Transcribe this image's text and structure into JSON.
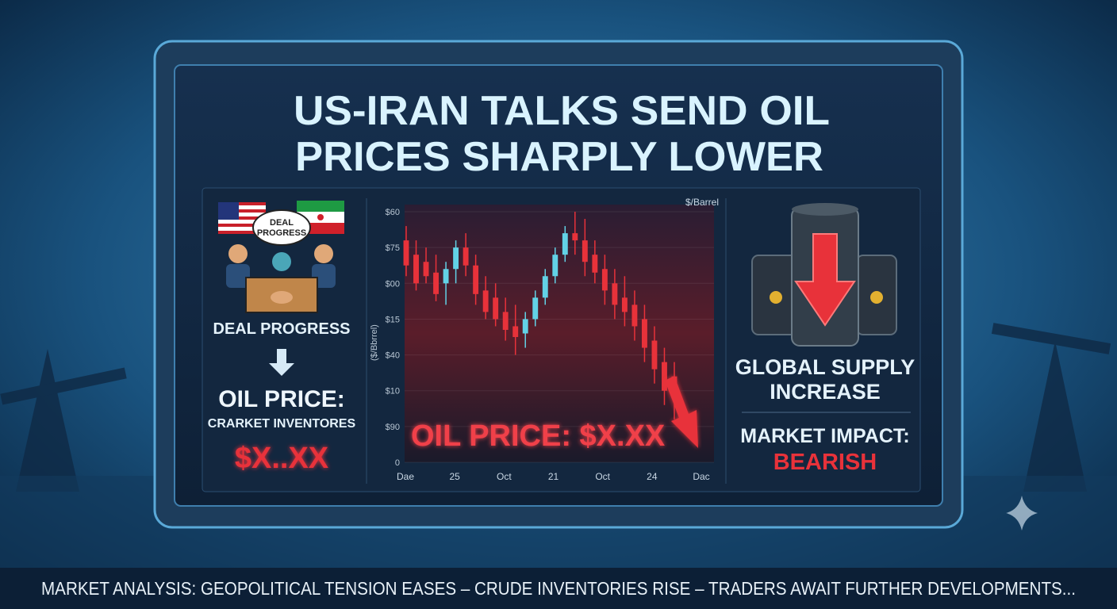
{
  "headline": {
    "line1": "US-IRAN TALKS SEND OIL",
    "line2": "PRICES SHARPLY LOWER"
  },
  "left_panel": {
    "speech_bubble": [
      "DEAL",
      "PROGRESS"
    ],
    "caption": "DEAL PROGRESS",
    "price_title": "OIL PRICE:",
    "price_subtitle": "CRARKET INVENTORES",
    "price_value": "$X..XX"
  },
  "chart_data": {
    "type": "candlestick",
    "unit_label": "$/Barrel",
    "y_label": "($/Bbrrel)",
    "overlay_label": "OIL PRICE: $X.XX",
    "x_tick_labels": [
      "Dae",
      "25",
      "Oct",
      "21",
      "Oct",
      "24",
      "Dac"
    ],
    "ylim": [
      0,
      72
    ],
    "yticks": [
      {
        "value": 70,
        "label": "$60"
      },
      {
        "value": 60,
        "label": "$75"
      },
      {
        "value": 50,
        "label": "$00"
      },
      {
        "value": 40,
        "label": "$15"
      },
      {
        "value": 30,
        "label": "$40"
      },
      {
        "value": 20,
        "label": "$10"
      },
      {
        "value": 10,
        "label": "$90"
      },
      0
    ],
    "up_color": "#62d2e6",
    "down_color": "#e8323a",
    "open": [
      62,
      58,
      56,
      53,
      50,
      54,
      60,
      55,
      48,
      46,
      42,
      38,
      36,
      40,
      46,
      52,
      58,
      64,
      62,
      58,
      54,
      50,
      46,
      44,
      40,
      34,
      28,
      24
    ],
    "high": [
      66,
      62,
      60,
      58,
      56,
      62,
      64,
      58,
      52,
      50,
      46,
      44,
      42,
      48,
      54,
      60,
      66,
      70,
      68,
      62,
      58,
      54,
      52,
      48,
      44,
      38,
      32,
      28
    ],
    "low": [
      52,
      48,
      50,
      45,
      44,
      50,
      52,
      44,
      40,
      38,
      34,
      30,
      32,
      38,
      44,
      50,
      56,
      58,
      52,
      50,
      44,
      40,
      38,
      34,
      28,
      22,
      16,
      12
    ],
    "close": [
      55,
      50,
      52,
      47,
      54,
      60,
      55,
      47,
      42,
      40,
      37,
      35,
      40,
      46,
      52,
      58,
      64,
      62,
      56,
      53,
      48,
      44,
      42,
      38,
      32,
      26,
      20,
      18
    ]
  },
  "right_panel": {
    "supply_line1": "GLOBAL SUPPLY",
    "supply_line2": "INCREASE",
    "impact_label": "MARKET IMPACT:",
    "impact_value": "BEARISH"
  },
  "ticker": "MARKET ANALYSIS: GEOPOLITICAL TENSION EASES – CRUDE INVENTORIES RISE – TRADERS AWAIT FURTHER DEVELOPMENTS..."
}
